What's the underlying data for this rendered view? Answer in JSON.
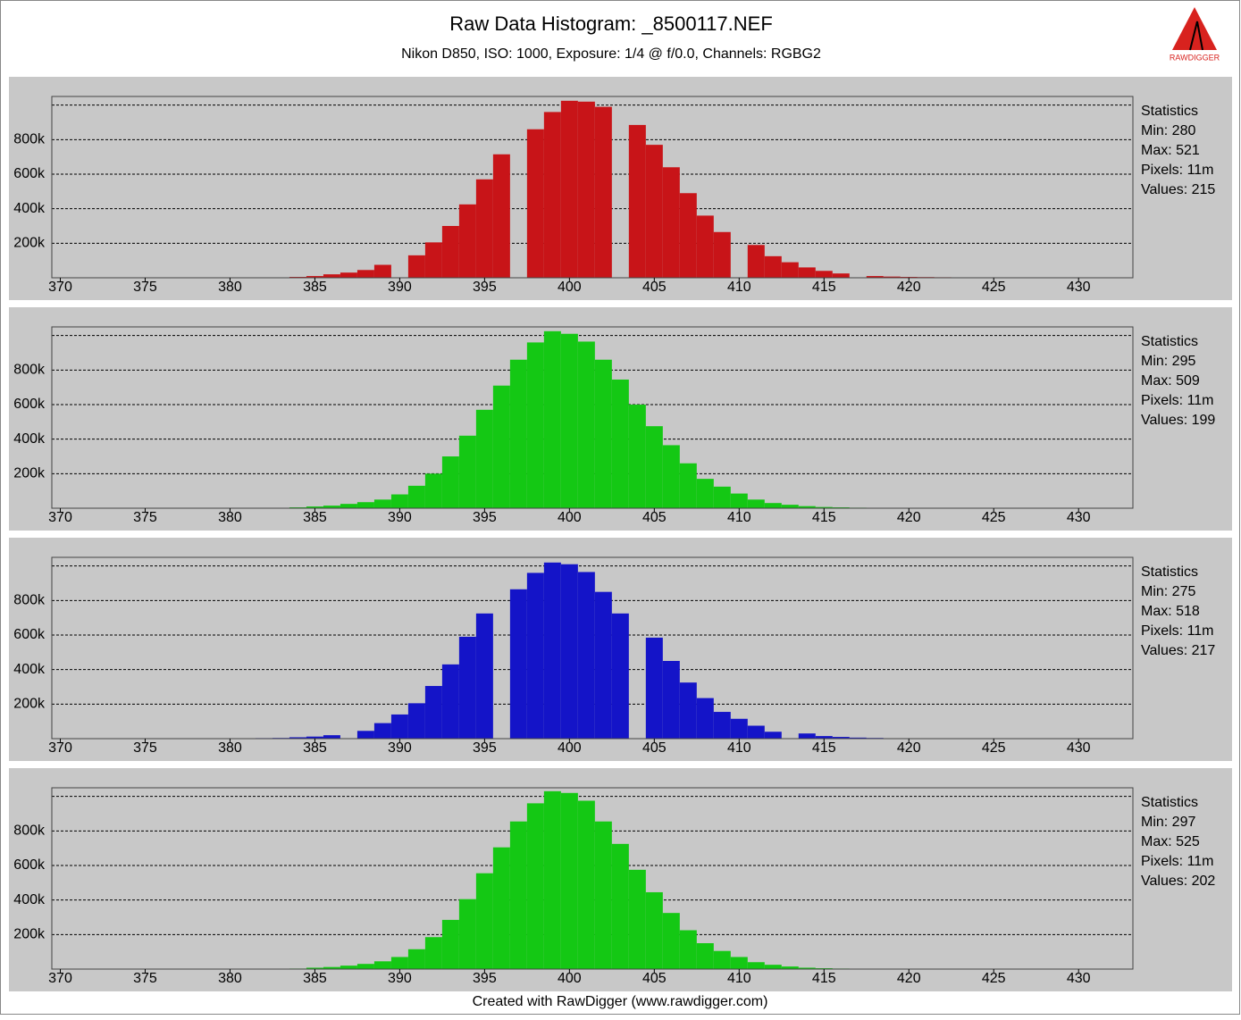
{
  "title": "Raw Data Histogram: _8500117.NEF",
  "subtitle": "Nikon D850, ISO: 1000, Exposure: 1/4 @ f/0.0, Channels: RGBG2",
  "footer": "Created with RawDigger (www.rawdigger.com)",
  "logo_text": "RAWDIGGER",
  "chart_data": [
    {
      "type": "bar",
      "color": "#c81418",
      "grid": true,
      "xlim": [
        369.5,
        433.2
      ],
      "xticks": [
        370,
        375,
        380,
        385,
        390,
        395,
        400,
        405,
        410,
        415,
        420,
        425,
        430
      ],
      "ylim": [
        0,
        1050000
      ],
      "yticks": [
        {
          "value": 200000,
          "label": "200k"
        },
        {
          "value": 400000,
          "label": "400k"
        },
        {
          "value": 600000,
          "label": "600k"
        },
        {
          "value": 800000,
          "label": "800k"
        },
        {
          "value": 1000000,
          "label": null
        }
      ],
      "x": [
        384,
        385,
        386,
        387,
        388,
        389,
        390,
        391,
        392,
        393,
        394,
        395,
        396,
        397,
        398,
        399,
        400,
        401,
        402,
        403,
        404,
        405,
        406,
        407,
        408,
        409,
        410,
        411,
        412,
        413,
        414,
        415,
        416,
        417,
        418,
        419,
        420,
        421,
        422
      ],
      "values": [
        5000,
        10000,
        20000,
        30000,
        45000,
        75000,
        0,
        130000,
        205000,
        300000,
        425000,
        570000,
        715000,
        0,
        860000,
        960000,
        1025000,
        1020000,
        990000,
        0,
        885000,
        770000,
        640000,
        490000,
        360000,
        265000,
        0,
        190000,
        125000,
        90000,
        60000,
        40000,
        25000,
        0,
        10000,
        7000,
        5000,
        4000,
        3000
      ],
      "stats_title": "Statistics",
      "stats": [
        "Min: 280",
        "Max: 521",
        "Pixels: 11m",
        "Values: 215"
      ]
    },
    {
      "type": "bar",
      "color": "#14c814",
      "grid": true,
      "xlim": [
        369.5,
        433.2
      ],
      "xticks": [
        370,
        375,
        380,
        385,
        390,
        395,
        400,
        405,
        410,
        415,
        420,
        425,
        430
      ],
      "ylim": [
        0,
        1050000
      ],
      "yticks": [
        {
          "value": 200000,
          "label": "200k"
        },
        {
          "value": 400000,
          "label": "400k"
        },
        {
          "value": 600000,
          "label": "600k"
        },
        {
          "value": 800000,
          "label": "800k"
        },
        {
          "value": 1000000,
          "label": null
        }
      ],
      "x": [
        384,
        385,
        386,
        387,
        388,
        389,
        390,
        391,
        392,
        393,
        394,
        395,
        396,
        397,
        398,
        399,
        400,
        401,
        402,
        403,
        404,
        405,
        406,
        407,
        408,
        409,
        410,
        411,
        412,
        413,
        414,
        415,
        416,
        417,
        418
      ],
      "values": [
        5000,
        10000,
        15000,
        25000,
        35000,
        50000,
        80000,
        130000,
        200000,
        300000,
        420000,
        570000,
        710000,
        860000,
        960000,
        1025000,
        1010000,
        965000,
        860000,
        745000,
        600000,
        475000,
        365000,
        260000,
        170000,
        125000,
        85000,
        50000,
        30000,
        20000,
        12000,
        7000,
        5000,
        3000,
        2000
      ],
      "stats_title": "Statistics",
      "stats": [
        "Min: 295",
        "Max: 509",
        "Pixels: 11m",
        "Values: 199"
      ]
    },
    {
      "type": "bar",
      "color": "#1414c8",
      "grid": true,
      "xlim": [
        369.5,
        433.2
      ],
      "xticks": [
        370,
        375,
        380,
        385,
        390,
        395,
        400,
        405,
        410,
        415,
        420,
        425,
        430
      ],
      "ylim": [
        0,
        1050000
      ],
      "yticks": [
        {
          "value": 200000,
          "label": "200k"
        },
        {
          "value": 400000,
          "label": "400k"
        },
        {
          "value": 600000,
          "label": "600k"
        },
        {
          "value": 800000,
          "label": "800k"
        },
        {
          "value": 1000000,
          "label": null
        }
      ],
      "x": [
        382,
        383,
        384,
        385,
        386,
        387,
        388,
        389,
        390,
        391,
        392,
        393,
        394,
        395,
        396,
        397,
        398,
        399,
        400,
        401,
        402,
        403,
        404,
        405,
        406,
        407,
        408,
        409,
        410,
        411,
        412,
        413,
        414,
        415,
        416,
        417,
        418,
        419
      ],
      "values": [
        3000,
        4000,
        8000,
        12000,
        20000,
        0,
        45000,
        90000,
        140000,
        205000,
        305000,
        430000,
        590000,
        725000,
        0,
        865000,
        960000,
        1020000,
        1010000,
        965000,
        850000,
        725000,
        0,
        585000,
        450000,
        325000,
        235000,
        155000,
        115000,
        75000,
        40000,
        0,
        30000,
        15000,
        10000,
        6000,
        4000,
        2000
      ],
      "stats_title": "Statistics",
      "stats": [
        "Min: 275",
        "Max: 518",
        "Pixels: 11m",
        "Values: 217"
      ]
    },
    {
      "type": "bar",
      "color": "#14c814",
      "grid": true,
      "xlim": [
        369.5,
        433.2
      ],
      "xticks": [
        370,
        375,
        380,
        385,
        390,
        395,
        400,
        405,
        410,
        415,
        420,
        425,
        430
      ],
      "ylim": [
        0,
        1050000
      ],
      "yticks": [
        {
          "value": 200000,
          "label": "200k"
        },
        {
          "value": 400000,
          "label": "400k"
        },
        {
          "value": 600000,
          "label": "600k"
        },
        {
          "value": 800000,
          "label": "800k"
        },
        {
          "value": 1000000,
          "label": null
        }
      ],
      "x": [
        384,
        385,
        386,
        387,
        388,
        389,
        390,
        391,
        392,
        393,
        394,
        395,
        396,
        397,
        398,
        399,
        400,
        401,
        402,
        403,
        404,
        405,
        406,
        407,
        408,
        409,
        410,
        411,
        412,
        413,
        414,
        415,
        416,
        417
      ],
      "values": [
        3000,
        8000,
        12000,
        20000,
        30000,
        45000,
        70000,
        115000,
        185000,
        285000,
        405000,
        555000,
        705000,
        855000,
        960000,
        1030000,
        1020000,
        975000,
        855000,
        725000,
        575000,
        445000,
        325000,
        225000,
        150000,
        105000,
        70000,
        40000,
        25000,
        15000,
        8000,
        5000,
        3000,
        2000
      ],
      "stats_title": "Statistics",
      "stats": [
        "Min: 297",
        "Max: 525",
        "Pixels: 11m",
        "Values: 202"
      ]
    }
  ]
}
